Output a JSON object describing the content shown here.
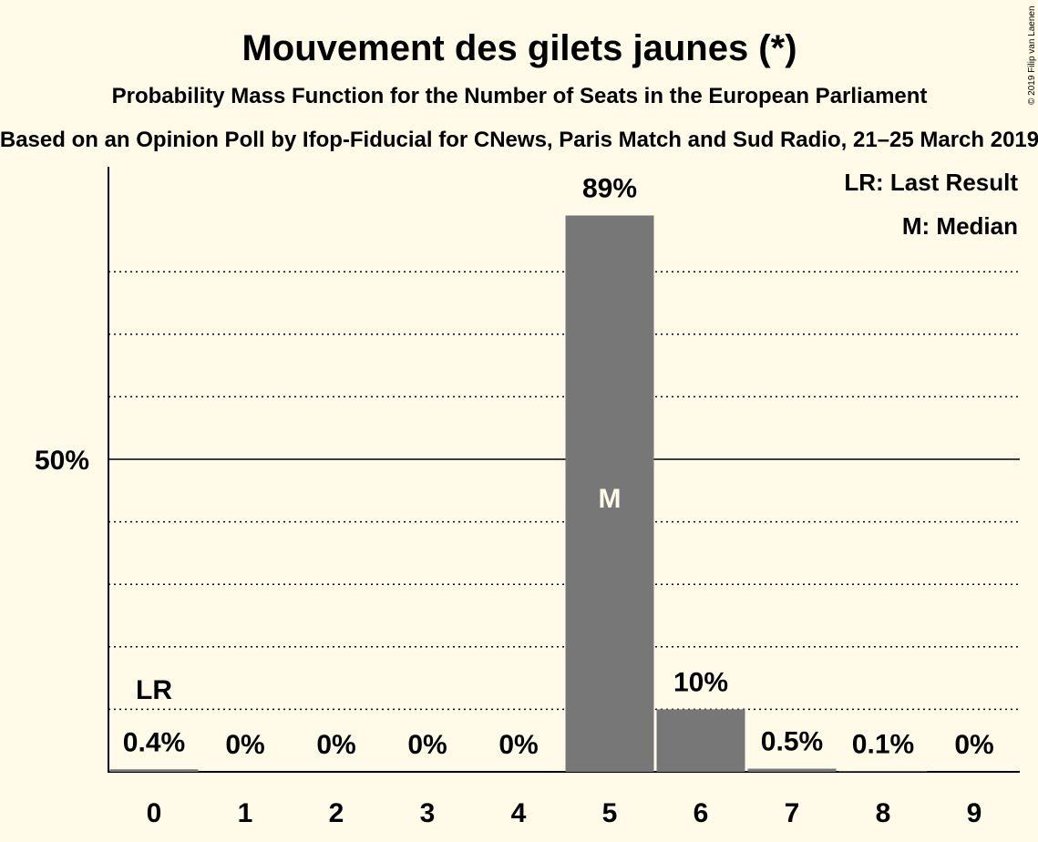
{
  "chart_data": {
    "type": "bar",
    "title": "Mouvement des gilets jaunes (*)",
    "subtitle": "Probability Mass Function for the Number of Seats in the European Parliament",
    "source": "Based on an Opinion Poll by Ifop-Fiducial for CNews, Paris Match and Sud Radio, 21–25 March 2019",
    "copyright": "© 2019 Filip van Laenen",
    "categories": [
      "0",
      "1",
      "2",
      "3",
      "4",
      "5",
      "6",
      "7",
      "8",
      "9"
    ],
    "values": [
      0.4,
      0,
      0,
      0,
      0,
      89,
      10,
      0.5,
      0.1,
      0
    ],
    "value_labels": [
      "0.4%",
      "0%",
      "0%",
      "0%",
      "0%",
      "89%",
      "10%",
      "0.5%",
      "0.1%",
      "0%"
    ],
    "ylim": [
      0,
      100
    ],
    "ytick_label": "50%",
    "ytick_value": 50,
    "gridlines": [
      10,
      20,
      30,
      40,
      60,
      70,
      80
    ],
    "last_result_index": 0,
    "median_index": 5,
    "lr_marker": "LR",
    "median_marker": "M",
    "legend": [
      "LR: Last Result",
      "M: Median"
    ],
    "legend_position": "top-right",
    "bar_color": "#777777",
    "background_color": "#FFFBE8"
  }
}
